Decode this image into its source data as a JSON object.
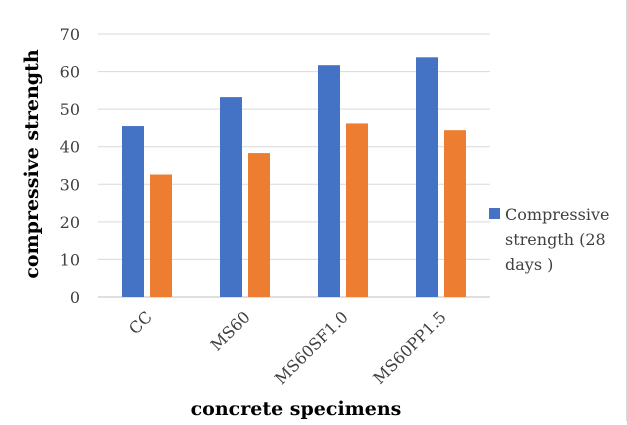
{
  "chart_data": {
    "type": "bar",
    "title": "",
    "xlabel": "concrete specimens",
    "ylabel": "compressive strength",
    "categories": [
      "CC",
      "MS60",
      "MS60SF1.0",
      "MS60PP1.5"
    ],
    "ylim": [
      0,
      70
    ],
    "yticks": [
      0,
      10,
      20,
      30,
      40,
      50,
      60,
      70
    ],
    "grid": true,
    "legend_position": "right",
    "legend_lines": [
      "Compressive",
      "strength (28",
      "days )"
    ],
    "series": [
      {
        "name": "Compressive strength (28 days )",
        "color": "#4472c4",
        "values": [
          45.5,
          53.2,
          61.7,
          63.8
        ]
      },
      {
        "name": "",
        "color": "#ed7d31",
        "values": [
          32.6,
          38.3,
          46.2,
          44.4
        ]
      }
    ]
  }
}
